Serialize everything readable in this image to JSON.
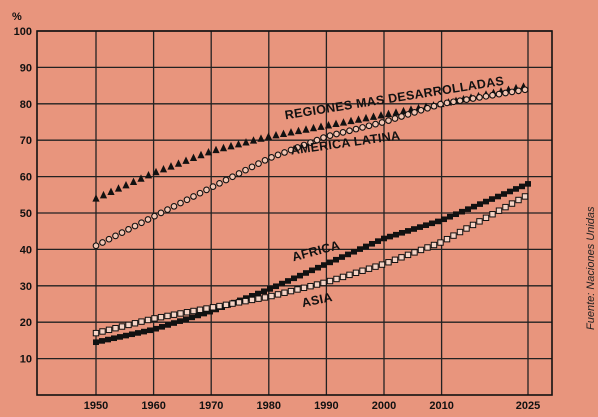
{
  "chart_data": {
    "type": "line",
    "title": "",
    "xlabel": "",
    "ylabel": "%",
    "xlim": [
      1950,
      2025
    ],
    "ylim": [
      0,
      100
    ],
    "x_ticks": [
      1950,
      1960,
      1970,
      1980,
      1990,
      2000,
      2010,
      2025
    ],
    "y_ticks": [
      10,
      20,
      30,
      40,
      50,
      60,
      70,
      80,
      90,
      100
    ],
    "grid": true,
    "legend": "inline-labels",
    "source_note": "Fuente: Naciones Unidas",
    "series": [
      {
        "name": "REGIONES MAS DESARROLLADAS",
        "marker": "triangle-filled",
        "x": [
          1950,
          1960,
          1970,
          1980,
          1990,
          2000,
          2010,
          2025
        ],
        "values": [
          54,
          61,
          67,
          71,
          74,
          77,
          80,
          85
        ]
      },
      {
        "name": "AMERICA LATINA",
        "marker": "circle-open",
        "x": [
          1950,
          1960,
          1970,
          1980,
          1990,
          2000,
          2010,
          2025
        ],
        "values": [
          41,
          49,
          57,
          65,
          71,
          75,
          80,
          84
        ]
      },
      {
        "name": "AFRICA",
        "marker": "square-filled",
        "x": [
          1950,
          1960,
          1970,
          1980,
          1990,
          2000,
          2010,
          2025
        ],
        "values": [
          14.5,
          18,
          23,
          29,
          36,
          43,
          48,
          58
        ]
      },
      {
        "name": "ASIA",
        "marker": "square-open",
        "x": [
          1950,
          1960,
          1970,
          1980,
          1990,
          2000,
          2010,
          2025
        ],
        "values": [
          17,
          21,
          24,
          27,
          31,
          36,
          42,
          55
        ]
      }
    ],
    "label_colors": {
      "ink": "#111111",
      "grid": "#222222",
      "background": "#e8957d"
    }
  }
}
